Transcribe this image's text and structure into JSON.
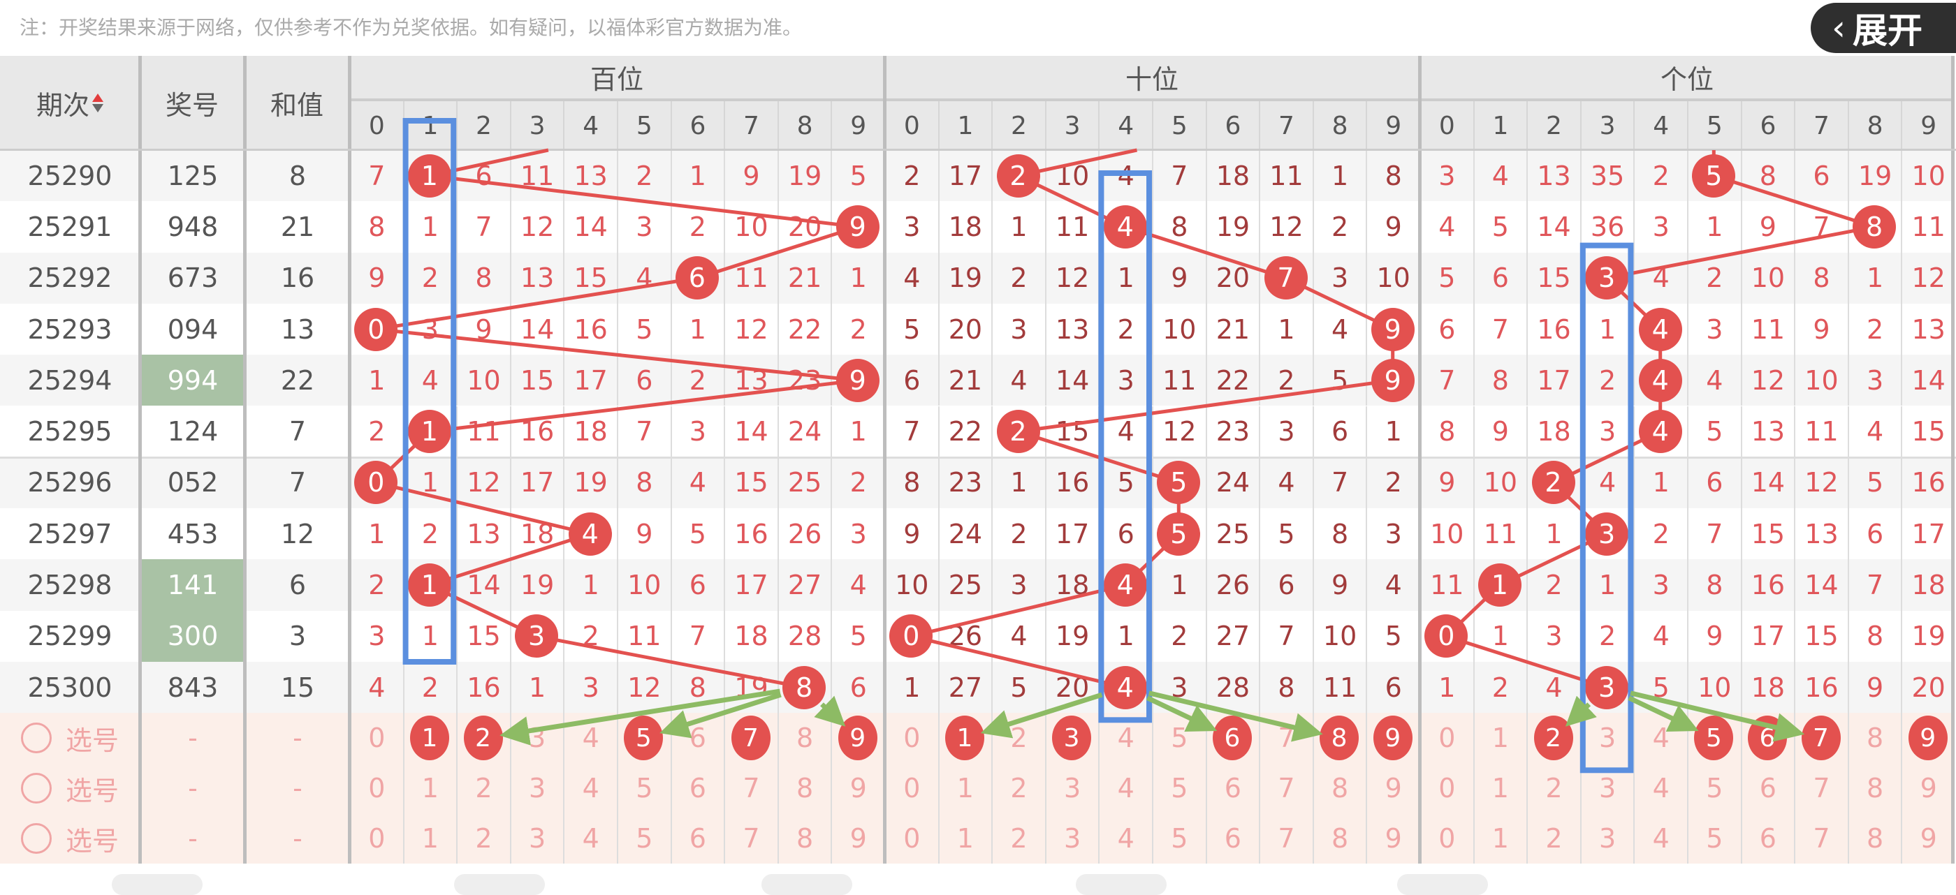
{
  "note": "注：开奖结果来源于网络，仅供参考不作为兑奖依据。如有疑问，以福体彩官方数据为准。",
  "header": {
    "period": "期次",
    "number": "奖号",
    "sum": "和值",
    "groups": [
      "百位",
      "十位",
      "个位"
    ],
    "digits": [
      "0",
      "1",
      "2",
      "3",
      "4",
      "5",
      "6",
      "7",
      "8",
      "9"
    ],
    "sort_icon": "sort-up-down-icon"
  },
  "rows": [
    {
      "period": "25290",
      "number": "125",
      "sum": "8",
      "highlight": false,
      "bai": [
        7,
        null,
        6,
        11,
        13,
        2,
        1,
        9,
        19,
        5
      ],
      "shi": [
        2,
        17,
        null,
        10,
        4,
        7,
        18,
        11,
        1,
        8
      ],
      "ge": [
        3,
        4,
        13,
        35,
        2,
        null,
        8,
        6,
        19,
        10
      ]
    },
    {
      "period": "25291",
      "number": "948",
      "sum": "21",
      "highlight": false,
      "bai": [
        8,
        1,
        7,
        12,
        14,
        3,
        2,
        10,
        20,
        null
      ],
      "shi": [
        3,
        18,
        1,
        11,
        null,
        8,
        19,
        12,
        2,
        9
      ],
      "ge": [
        4,
        5,
        14,
        36,
        3,
        1,
        9,
        7,
        null,
        11
      ]
    },
    {
      "period": "25292",
      "number": "673",
      "sum": "16",
      "highlight": false,
      "bai": [
        9,
        2,
        8,
        13,
        15,
        4,
        null,
        11,
        21,
        1
      ],
      "shi": [
        4,
        19,
        2,
        12,
        1,
        9,
        20,
        null,
        3,
        10
      ],
      "ge": [
        5,
        6,
        15,
        null,
        4,
        2,
        10,
        8,
        1,
        12
      ]
    },
    {
      "period": "25293",
      "number": "094",
      "sum": "13",
      "highlight": false,
      "bai": [
        null,
        3,
        9,
        14,
        16,
        5,
        1,
        12,
        22,
        2
      ],
      "shi": [
        5,
        20,
        3,
        13,
        2,
        10,
        21,
        1,
        4,
        null
      ],
      "ge": [
        6,
        7,
        16,
        1,
        null,
        3,
        11,
        9,
        2,
        13
      ]
    },
    {
      "period": "25294",
      "number": "994",
      "sum": "22",
      "highlight": true,
      "bai": [
        1,
        4,
        10,
        15,
        17,
        6,
        2,
        13,
        23,
        null
      ],
      "shi": [
        6,
        21,
        4,
        14,
        3,
        11,
        22,
        2,
        5,
        null
      ],
      "ge": [
        7,
        8,
        17,
        2,
        null,
        4,
        12,
        10,
        3,
        14
      ]
    },
    {
      "period": "25295",
      "number": "124",
      "sum": "7",
      "highlight": false,
      "bai": [
        2,
        null,
        11,
        16,
        18,
        7,
        3,
        14,
        24,
        1
      ],
      "shi": [
        7,
        22,
        null,
        15,
        4,
        12,
        23,
        3,
        6,
        1
      ],
      "ge": [
        8,
        9,
        18,
        3,
        null,
        5,
        13,
        11,
        4,
        15
      ]
    },
    {
      "period": "25296",
      "number": "052",
      "sum": "7",
      "highlight": false,
      "bai": [
        null,
        1,
        12,
        17,
        19,
        8,
        4,
        15,
        25,
        2
      ],
      "shi": [
        8,
        23,
        1,
        16,
        5,
        null,
        24,
        4,
        7,
        2
      ],
      "ge": [
        9,
        10,
        null,
        4,
        1,
        6,
        14,
        12,
        5,
        16
      ]
    },
    {
      "period": "25297",
      "number": "453",
      "sum": "12",
      "highlight": false,
      "bai": [
        1,
        2,
        13,
        18,
        null,
        9,
        5,
        16,
        26,
        3
      ],
      "shi": [
        9,
        24,
        2,
        17,
        6,
        null,
        25,
        5,
        8,
        3
      ],
      "ge": [
        10,
        11,
        1,
        null,
        2,
        7,
        15,
        13,
        6,
        17
      ]
    },
    {
      "period": "25298",
      "number": "141",
      "sum": "6",
      "highlight": true,
      "bai": [
        2,
        null,
        14,
        19,
        1,
        10,
        6,
        17,
        27,
        4
      ],
      "shi": [
        10,
        25,
        3,
        18,
        null,
        1,
        26,
        6,
        9,
        4
      ],
      "ge": [
        11,
        null,
        2,
        1,
        3,
        8,
        16,
        14,
        7,
        18
      ]
    },
    {
      "period": "25299",
      "number": "300",
      "sum": "3",
      "highlight": true,
      "bai": [
        3,
        1,
        15,
        null,
        2,
        11,
        7,
        18,
        28,
        5
      ],
      "shi": [
        null,
        26,
        4,
        19,
        1,
        2,
        27,
        7,
        10,
        5
      ],
      "ge": [
        null,
        1,
        3,
        2,
        4,
        9,
        17,
        15,
        8,
        19
      ]
    },
    {
      "period": "25300",
      "number": "843",
      "sum": "15",
      "highlight": false,
      "bai": [
        4,
        2,
        16,
        1,
        3,
        12,
        8,
        19,
        null,
        6
      ],
      "shi": [
        1,
        27,
        5,
        20,
        null,
        3,
        28,
        8,
        11,
        6
      ],
      "ge": [
        1,
        2,
        4,
        null,
        5,
        10,
        18,
        16,
        9,
        20
      ]
    }
  ],
  "select_rows": [
    {
      "label": "选号",
      "number": "-",
      "sum": "-",
      "bai": [
        1,
        2,
        5,
        7,
        9
      ],
      "shi": [
        1,
        3,
        6,
        8,
        9
      ],
      "ge": [
        2,
        5,
        6,
        7,
        9
      ]
    },
    {
      "label": "选号",
      "number": "-",
      "sum": "-",
      "bai": [],
      "shi": [],
      "ge": []
    },
    {
      "label": "选号",
      "number": "-",
      "sum": "-",
      "bai": [],
      "shi": [],
      "ge": []
    }
  ],
  "expand_button": {
    "label": "展开",
    "icon": "chevron-left-icon"
  },
  "colors": {
    "ball": "#e3514f",
    "bai_text": "#e0565a",
    "shi_text": "#a23b3b",
    "ge_text": "#e0565a",
    "highlight": "#a9c2a5",
    "box": "#5b8fdf",
    "arrow": "#8dbb64",
    "select_bg": "#fcefe9"
  }
}
